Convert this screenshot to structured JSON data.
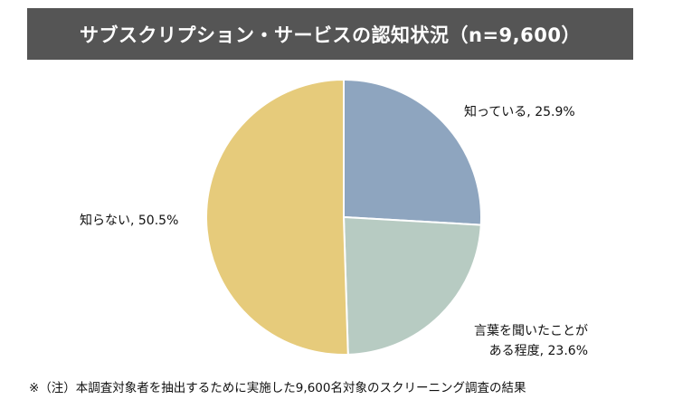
{
  "chart_data": {
    "type": "pie",
    "title": "サブスクリプション・サービスの認知状況（n=9,600）",
    "slices": [
      {
        "label_lines": [
          "知っている,"
        ],
        "pct_text": "25.9%",
        "value": 25.9,
        "color": "#8ea5bf"
      },
      {
        "label_lines": [
          "言葉を聞いたことが",
          "ある程度,"
        ],
        "pct_text": "23.6%",
        "value": 23.6,
        "color": "#b7cbc2"
      },
      {
        "label_lines": [
          "知らない,"
        ],
        "pct_text": "50.5%",
        "value": 50.5,
        "color": "#e6cb7b"
      }
    ],
    "footnote": "※（注）本調査対象者を抽出するために実施した9,600名対象のスクリーニング調査の結果"
  }
}
